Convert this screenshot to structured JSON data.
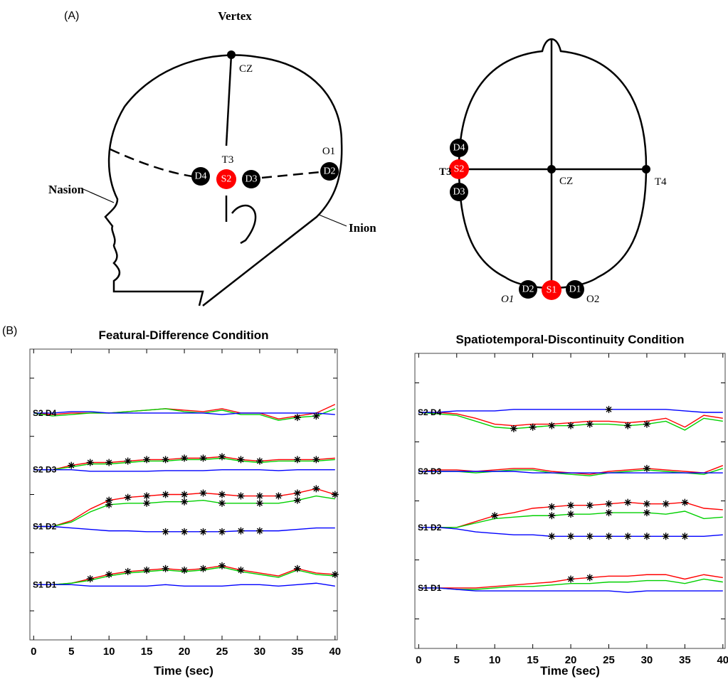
{
  "panel_a": {
    "label": "(A)",
    "side_view": {
      "vertex": "Vertex",
      "cz": "CZ",
      "t3": "T3",
      "o1": "O1",
      "nasion": "Nasion",
      "inion": "Inion",
      "electrodes": [
        "D4",
        "S2",
        "D3",
        "D2"
      ]
    },
    "top_view": {
      "t3": "T3",
      "cz": "CZ",
      "t4": "T4",
      "o1": "O1",
      "o2": "O2",
      "electrodes": [
        "D4",
        "S2",
        "D3",
        "D2",
        "S1",
        "D1"
      ]
    }
  },
  "panel_b": {
    "label": "(B)"
  },
  "chart_data": [
    {
      "type": "line",
      "title": "Featural-Difference Condition",
      "xlabel": "Time (sec)",
      "x": [
        0,
        2.5,
        5,
        7.5,
        10,
        12.5,
        15,
        17.5,
        20,
        22.5,
        25,
        27.5,
        30,
        32.5,
        35,
        37.5,
        40
      ],
      "xlim": [
        -0.5,
        40.3
      ],
      "xticks": [
        0,
        5,
        10,
        15,
        20,
        25,
        30,
        35,
        40
      ],
      "ylim": [
        0,
        10
      ],
      "yticks": [
        1,
        3,
        5,
        7,
        9
      ],
      "channels": [
        {
          "label": "S2 D4",
          "series": [
            {
              "color": "#ff0000",
              "values": [
                7.8,
                7.75,
                7.8,
                7.8,
                7.8,
                7.85,
                7.9,
                7.95,
                7.9,
                7.85,
                7.95,
                7.8,
                7.8,
                7.6,
                7.7,
                7.8,
                8.1
              ],
              "stars": []
            },
            {
              "color": "#00d000",
              "values": [
                7.8,
                7.7,
                7.75,
                7.8,
                7.8,
                7.85,
                7.9,
                7.95,
                7.85,
                7.8,
                7.9,
                7.75,
                7.75,
                7.55,
                7.65,
                7.7,
                7.95
              ],
              "stars": [
                35,
                37.5
              ]
            },
            {
              "color": "#0000ff",
              "values": [
                7.8,
                7.8,
                7.85,
                7.85,
                7.8,
                7.8,
                7.8,
                7.8,
                7.8,
                7.8,
                7.75,
                7.8,
                7.8,
                7.8,
                7.8,
                7.8,
                7.75
              ],
              "stars": []
            }
          ]
        },
        {
          "label": "S2 D3",
          "series": [
            {
              "color": "#ff0000",
              "values": [
                5.85,
                5.85,
                6.0,
                6.1,
                6.1,
                6.15,
                6.2,
                6.2,
                6.25,
                6.25,
                6.3,
                6.2,
                6.15,
                6.2,
                6.2,
                6.2,
                6.25
              ],
              "stars": [
                5,
                7.5,
                10,
                12.5,
                15,
                17.5,
                20,
                22.5,
                25,
                27.5,
                30,
                35,
                37.5
              ]
            },
            {
              "color": "#00d000",
              "values": [
                5.85,
                5.85,
                5.95,
                6.05,
                6.05,
                6.1,
                6.15,
                6.15,
                6.2,
                6.2,
                6.25,
                6.15,
                6.1,
                6.15,
                6.15,
                6.15,
                6.2
              ],
              "stars": []
            },
            {
              "color": "#0000ff",
              "values": [
                5.85,
                5.85,
                5.85,
                5.8,
                5.8,
                5.8,
                5.8,
                5.82,
                5.82,
                5.82,
                5.85,
                5.85,
                5.85,
                5.82,
                5.85,
                5.85,
                5.85
              ],
              "stars": []
            }
          ]
        },
        {
          "label": "S1 D2",
          "series": [
            {
              "color": "#ff0000",
              "values": [
                3.9,
                3.9,
                4.1,
                4.5,
                4.8,
                4.9,
                4.95,
                5.0,
                5.0,
                5.05,
                5.0,
                4.95,
                4.95,
                4.95,
                5.05,
                5.2,
                5.0
              ],
              "stars": [
                10,
                12.5,
                15,
                17.5,
                20,
                22.5,
                25,
                27.5,
                30,
                32.5,
                35,
                37.5,
                40
              ]
            },
            {
              "color": "#00d000",
              "values": [
                3.9,
                3.9,
                4.05,
                4.4,
                4.65,
                4.7,
                4.7,
                4.75,
                4.75,
                4.8,
                4.7,
                4.7,
                4.7,
                4.7,
                4.8,
                4.95,
                4.85
              ],
              "stars": [
                10,
                15,
                20,
                25,
                30,
                35
              ]
            },
            {
              "color": "#0000ff",
              "values": [
                3.9,
                3.9,
                3.85,
                3.8,
                3.75,
                3.75,
                3.72,
                3.72,
                3.72,
                3.72,
                3.72,
                3.75,
                3.75,
                3.75,
                3.8,
                3.85,
                3.85
              ],
              "stars": [
                17.5,
                20,
                22.5,
                25,
                27.5,
                30
              ]
            }
          ]
        },
        {
          "label": "S1 D1",
          "series": [
            {
              "color": "#ff0000",
              "values": [
                1.9,
                1.9,
                1.95,
                2.1,
                2.25,
                2.35,
                2.4,
                2.45,
                2.4,
                2.45,
                2.55,
                2.4,
                2.3,
                2.2,
                2.45,
                2.3,
                2.25
              ],
              "stars": [
                7.5,
                10,
                12.5,
                15,
                17.5,
                20,
                22.5,
                25,
                27.5,
                35,
                40
              ]
            },
            {
              "color": "#00d000",
              "values": [
                1.9,
                1.9,
                1.95,
                2.05,
                2.2,
                2.3,
                2.35,
                2.4,
                2.35,
                2.4,
                2.5,
                2.35,
                2.25,
                2.15,
                2.4,
                2.25,
                2.2
              ],
              "stars": []
            },
            {
              "color": "#0000ff",
              "values": [
                1.9,
                1.9,
                1.9,
                1.85,
                1.85,
                1.85,
                1.85,
                1.9,
                1.85,
                1.85,
                1.85,
                1.9,
                1.9,
                1.85,
                1.9,
                1.95,
                1.85
              ],
              "stars": []
            }
          ]
        }
      ]
    },
    {
      "type": "line",
      "title": "Spatiotemporal-Discontinuity Condition",
      "xlabel": "Time (sec)",
      "x": [
        0,
        2.5,
        5,
        7.5,
        10,
        12.5,
        15,
        17.5,
        20,
        22.5,
        25,
        27.5,
        30,
        32.5,
        35,
        37.5,
        40
      ],
      "xlim": [
        -0.5,
        40.3
      ],
      "xticks": [
        0,
        5,
        10,
        15,
        20,
        25,
        30,
        35,
        40
      ],
      "ylim": [
        0,
        10
      ],
      "yticks": [
        1,
        3,
        5,
        7,
        9
      ],
      "channels": [
        {
          "label": "S2 D4",
          "series": [
            {
              "color": "#ff0000",
              "values": [
                8.0,
                8.0,
                7.95,
                7.8,
                7.6,
                7.55,
                7.6,
                7.6,
                7.65,
                7.7,
                7.7,
                7.65,
                7.7,
                7.8,
                7.5,
                7.9,
                7.8
              ],
              "stars": []
            },
            {
              "color": "#00d000",
              "values": [
                8.0,
                7.95,
                7.9,
                7.7,
                7.5,
                7.45,
                7.5,
                7.55,
                7.55,
                7.6,
                7.6,
                7.55,
                7.6,
                7.7,
                7.4,
                7.8,
                7.7
              ],
              "stars": [
                12.5,
                15,
                17.5,
                20,
                22.5,
                27.5,
                30
              ]
            },
            {
              "color": "#0000ff",
              "values": [
                8.0,
                8.0,
                8.05,
                8.05,
                8.05,
                8.1,
                8.1,
                8.1,
                8.1,
                8.1,
                8.1,
                8.1,
                8.1,
                8.1,
                8.05,
                8.0,
                8.0
              ],
              "stars": [
                25
              ]
            }
          ]
        },
        {
          "label": "S2 D3",
          "series": [
            {
              "color": "#ff0000",
              "values": [
                6.0,
                6.05,
                6.05,
                6.0,
                6.05,
                6.1,
                6.1,
                6.0,
                5.95,
                5.9,
                6.0,
                6.05,
                6.1,
                6.05,
                6.0,
                5.95,
                6.2
              ],
              "stars": [
                30
              ]
            },
            {
              "color": "#00d000",
              "values": [
                6.0,
                6.0,
                6.0,
                5.95,
                6.0,
                6.05,
                6.05,
                5.95,
                5.9,
                5.85,
                5.95,
                6.0,
                6.05,
                6.0,
                5.95,
                5.9,
                6.1
              ],
              "stars": []
            },
            {
              "color": "#0000ff",
              "values": [
                6.0,
                6.0,
                6.0,
                6.0,
                6.0,
                6.0,
                5.95,
                5.95,
                5.95,
                5.95,
                5.95,
                5.95,
                5.95,
                5.95,
                5.95,
                5.95,
                5.95
              ],
              "stars": []
            }
          ]
        },
        {
          "label": "S1 D2",
          "series": [
            {
              "color": "#ff0000",
              "values": [
                4.1,
                4.1,
                4.1,
                4.3,
                4.5,
                4.6,
                4.75,
                4.8,
                4.85,
                4.85,
                4.9,
                4.95,
                4.9,
                4.9,
                4.95,
                4.75,
                4.7
              ],
              "stars": [
                10,
                17.5,
                20,
                22.5,
                25,
                27.5,
                30,
                32.5,
                35
              ]
            },
            {
              "color": "#00d000",
              "values": [
                4.1,
                4.1,
                4.1,
                4.25,
                4.4,
                4.45,
                4.5,
                4.5,
                4.55,
                4.55,
                4.6,
                4.6,
                4.6,
                4.55,
                4.65,
                4.4,
                4.45
              ],
              "stars": [
                17.5,
                20,
                25,
                30
              ]
            },
            {
              "color": "#0000ff",
              "values": [
                4.1,
                4.1,
                4.05,
                3.95,
                3.9,
                3.85,
                3.85,
                3.8,
                3.8,
                3.8,
                3.8,
                3.8,
                3.8,
                3.8,
                3.8,
                3.8,
                3.85
              ],
              "stars": [
                17.5,
                20,
                22.5,
                25,
                27.5,
                30,
                32.5,
                35
              ]
            }
          ]
        },
        {
          "label": "S1 D1",
          "series": [
            {
              "color": "#ff0000",
              "values": [
                2.05,
                2.05,
                2.05,
                2.05,
                2.1,
                2.15,
                2.2,
                2.25,
                2.35,
                2.4,
                2.45,
                2.45,
                2.5,
                2.5,
                2.35,
                2.5,
                2.4
              ],
              "stars": [
                20,
                22.5
              ]
            },
            {
              "color": "#00d000",
              "values": [
                2.05,
                2.05,
                2.0,
                2.0,
                2.05,
                2.1,
                2.1,
                2.15,
                2.2,
                2.2,
                2.25,
                2.25,
                2.3,
                2.3,
                2.2,
                2.35,
                2.25
              ],
              "stars": []
            },
            {
              "color": "#0000ff",
              "values": [
                2.05,
                2.05,
                2.0,
                1.95,
                1.95,
                1.95,
                1.95,
                1.95,
                1.95,
                1.95,
                1.95,
                1.9,
                1.95,
                1.95,
                1.95,
                1.95,
                1.95
              ],
              "stars": []
            }
          ]
        }
      ]
    }
  ]
}
